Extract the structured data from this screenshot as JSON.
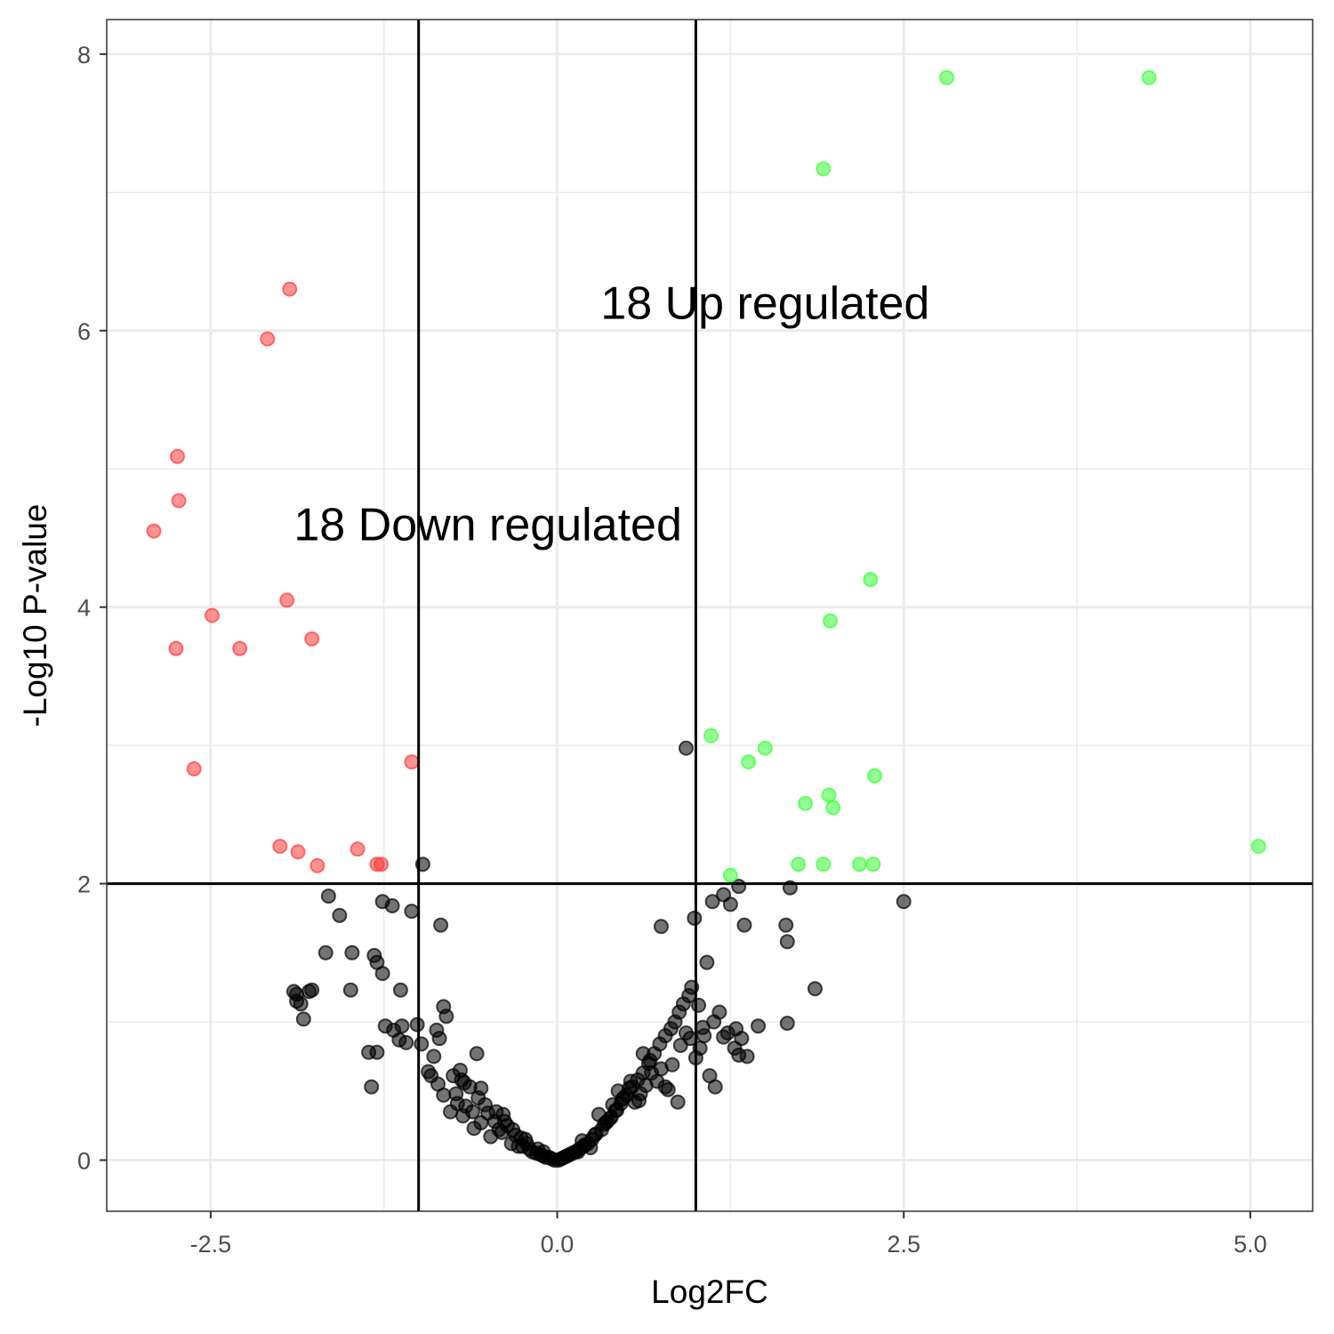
{
  "chart_data": {
    "type": "scatter",
    "title": "",
    "xlabel": "Log2FC",
    "ylabel": "-Log10 P-value",
    "xlim": [
      -3.25,
      5.45
    ],
    "ylim": [
      -0.37,
      8.25
    ],
    "x_ticks": [
      -2.5,
      0.0,
      2.5,
      5.0
    ],
    "x_tick_labels": [
      "-2.5",
      "0.0",
      "2.5",
      "5.0"
    ],
    "y_ticks": [
      0,
      2,
      4,
      6,
      8
    ],
    "y_tick_labels": [
      "0",
      "2",
      "4",
      "6",
      "8"
    ],
    "x_minor_ticks": [
      -1.25,
      1.25,
      3.75
    ],
    "y_minor_ticks": [
      1,
      3,
      5,
      7
    ],
    "grid": true,
    "legend": "none",
    "vlines": [
      -1,
      1
    ],
    "hlines": [
      2
    ],
    "colors": {
      "down": "#ff3b3b",
      "up": "#3bff3b",
      "ns": "#000000",
      "grid": "#ebebeb",
      "panel_border": "#333333"
    },
    "annotations": [
      {
        "text": "18 Up regulated",
        "x": 1.5,
        "y": 6.2
      },
      {
        "text": "18 Down regulated",
        "x": -0.5,
        "y": 4.6
      }
    ],
    "series": [
      {
        "group": "down",
        "color": "#ff3b3b",
        "x": [
          -1.93,
          -2.09,
          -2.74,
          -2.73,
          -2.91,
          -1.95,
          -2.49,
          -2.75,
          -2.29,
          -1.77,
          -2.62,
          -1.05,
          -2.0,
          -1.87,
          -1.73,
          -1.44,
          -1.3,
          -1.27
        ],
        "y": [
          6.3,
          5.94,
          5.09,
          4.77,
          4.55,
          4.05,
          3.94,
          3.7,
          3.7,
          3.77,
          2.83,
          2.88,
          2.27,
          2.23,
          2.13,
          2.25,
          2.14,
          2.14
        ]
      },
      {
        "group": "up",
        "color": "#3bff3b",
        "x": [
          2.81,
          4.27,
          1.92,
          2.26,
          1.97,
          1.11,
          1.5,
          1.38,
          2.29,
          1.96,
          1.79,
          1.99,
          1.74,
          1.92,
          2.18,
          2.28,
          1.25,
          5.06
        ],
        "y": [
          7.83,
          7.83,
          7.17,
          4.2,
          3.9,
          3.07,
          2.98,
          2.88,
          2.78,
          2.64,
          2.58,
          2.55,
          2.14,
          2.14,
          2.14,
          2.14,
          2.06,
          2.27
        ]
      },
      {
        "group": "ns",
        "color": "#000000",
        "x": [
          0.93,
          -0.97,
          1.68,
          2.5,
          1.31,
          1.12,
          1.2,
          1.25,
          0.99,
          1.35,
          1.65,
          1.66,
          0.75,
          -1.65,
          -1.26,
          -1.19,
          -1.57,
          -1.05,
          -0.84,
          -1.67,
          -1.32,
          -1.3,
          -1.48,
          -1.79,
          -1.88,
          -1.77,
          -1.9,
          -1.85,
          -1.49,
          -1.26,
          -1.13,
          -1.88,
          -1.83,
          -1.18,
          -1.24,
          -1.3,
          -1.09,
          -1.12,
          -0.98,
          -1.36,
          -1.34,
          -1.01,
          -1.14,
          -0.87,
          -0.82,
          -0.8,
          -0.85,
          -0.89,
          -0.7,
          -0.58,
          -0.67,
          -0.75,
          -0.93,
          -0.55,
          -0.82,
          -0.66,
          -0.68,
          -0.72,
          -0.61,
          -0.5,
          -0.39,
          -0.45,
          -0.42,
          -0.36,
          -0.3,
          -0.23,
          -0.33,
          -0.28,
          -0.4,
          -0.48,
          -0.55,
          -0.6,
          -0.2,
          -0.15,
          -0.25,
          -0.18,
          -0.12,
          -0.1,
          -0.06,
          -0.08,
          -0.04,
          -0.02,
          0.01,
          0.03,
          0.05,
          0.07,
          0.09,
          0.11,
          0.13,
          0.16,
          0.19,
          0.22,
          0.25,
          0.28,
          0.32,
          0.35,
          0.38,
          0.42,
          0.46,
          0.5,
          0.54,
          0.58,
          0.62,
          0.66,
          0.7,
          0.74,
          0.78,
          0.82,
          0.85,
          0.88,
          0.91,
          0.95,
          0.97,
          1.02,
          1.05,
          1.08,
          1.1,
          1.14,
          1.2,
          1.23,
          1.29,
          1.33,
          1.37,
          1.45,
          1.28,
          1.31,
          1.86,
          1.66,
          0.62,
          0.72,
          0.8,
          0.87,
          0.59,
          0.67,
          0.75,
          0.78,
          0.53,
          0.48,
          0.44,
          0.4,
          0.36,
          0.3,
          -0.1,
          -0.14,
          -0.22,
          -0.26,
          -0.32,
          -0.38,
          -0.44,
          -0.52,
          -0.57,
          -0.63,
          -0.69,
          -0.73,
          -0.77,
          -0.86,
          -0.91,
          0.15,
          0.2,
          0.24,
          0.18,
          0.27,
          0.34,
          0.39,
          0.43,
          0.47,
          0.52,
          0.56,
          0.6,
          0.64,
          0.68,
          0.83,
          0.89,
          0.93,
          0.96,
          1.0,
          1.03,
          1.06,
          1.13,
          1.17
        ],
        "y": [
          2.98,
          2.14,
          1.97,
          1.87,
          1.98,
          1.87,
          1.92,
          1.85,
          1.75,
          1.7,
          1.7,
          1.58,
          1.69,
          1.91,
          1.87,
          1.84,
          1.77,
          1.8,
          1.7,
          1.5,
          1.48,
          1.43,
          1.5,
          1.22,
          1.15,
          1.23,
          1.22,
          1.13,
          1.23,
          1.35,
          1.23,
          1.2,
          1.02,
          0.94,
          0.97,
          0.78,
          0.85,
          0.97,
          0.84,
          0.78,
          0.53,
          0.98,
          0.87,
          0.94,
          1.11,
          1.04,
          0.88,
          0.75,
          0.65,
          0.77,
          0.56,
          0.61,
          0.64,
          0.52,
          0.47,
          0.39,
          0.32,
          0.41,
          0.35,
          0.34,
          0.33,
          0.28,
          0.22,
          0.25,
          0.18,
          0.15,
          0.12,
          0.1,
          0.2,
          0.17,
          0.27,
          0.23,
          0.08,
          0.05,
          0.1,
          0.06,
          0.04,
          0.03,
          0.02,
          0.02,
          0.01,
          0.0,
          0.0,
          0.01,
          0.02,
          0.03,
          0.04,
          0.05,
          0.06,
          0.08,
          0.1,
          0.12,
          0.15,
          0.19,
          0.22,
          0.27,
          0.3,
          0.36,
          0.41,
          0.47,
          0.53,
          0.58,
          0.63,
          0.7,
          0.77,
          0.84,
          0.9,
          0.95,
          1.0,
          1.07,
          1.13,
          1.19,
          1.25,
          1.12,
          0.96,
          1.43,
          0.61,
          0.53,
          0.89,
          0.92,
          0.95,
          0.88,
          0.75,
          0.97,
          0.81,
          0.76,
          1.24,
          0.99,
          0.77,
          0.57,
          0.51,
          0.42,
          0.43,
          0.72,
          0.66,
          0.53,
          0.57,
          0.45,
          0.5,
          0.4,
          0.28,
          0.33,
          0.06,
          0.08,
          0.12,
          0.16,
          0.22,
          0.28,
          0.35,
          0.4,
          0.45,
          0.53,
          0.58,
          0.48,
          0.35,
          0.55,
          0.61,
          0.06,
          0.11,
          0.09,
          0.14,
          0.18,
          0.26,
          0.31,
          0.36,
          0.44,
          0.52,
          0.42,
          0.48,
          0.54,
          0.63,
          0.69,
          0.83,
          0.92,
          0.88,
          0.74,
          0.81,
          0.9,
          1.0,
          1.07
        ]
      }
    ]
  }
}
